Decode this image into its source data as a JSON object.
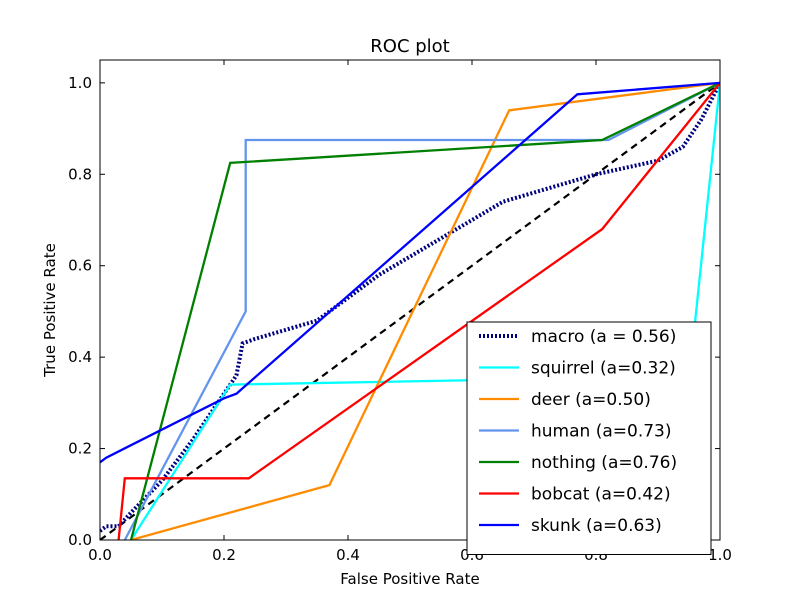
{
  "chart_data": {
    "type": "line",
    "title": "ROC plot",
    "xlabel": "False Positive Rate",
    "ylabel": "True Positive Rate",
    "xlim": [
      0.0,
      1.0
    ],
    "ylim": [
      0.0,
      1.05
    ],
    "xticks": [
      "0.0",
      "0.2",
      "0.4",
      "0.6",
      "0.8",
      "1.0"
    ],
    "yticks": [
      "0.0",
      "0.2",
      "0.4",
      "0.6",
      "0.8",
      "1.0"
    ],
    "grid": false,
    "legend_position": "lower-right",
    "reference_line": {
      "x": [
        0,
        1
      ],
      "y": [
        0,
        1
      ],
      "color": "#000000",
      "style": "dashed"
    },
    "series": [
      {
        "name": "macro (a = 0.56)",
        "color": "#000080",
        "style": "dotted",
        "x": [
          0.0,
          0.01,
          0.03,
          0.05,
          0.1,
          0.15,
          0.2,
          0.22,
          0.23,
          0.25,
          0.35,
          0.45,
          0.55,
          0.65,
          0.75,
          0.8,
          0.9,
          0.94,
          0.97,
          1.0
        ],
        "y": [
          0.02,
          0.03,
          0.03,
          0.06,
          0.13,
          0.22,
          0.32,
          0.36,
          0.43,
          0.44,
          0.48,
          0.58,
          0.66,
          0.74,
          0.78,
          0.8,
          0.83,
          0.86,
          0.92,
          1.0
        ]
      },
      {
        "name": "squirrel (a=0.32)",
        "color": "#00ffff",
        "style": "solid",
        "x": [
          0.05,
          0.21,
          0.62,
          0.95,
          1.0
        ],
        "y": [
          0.0,
          0.34,
          0.35,
          0.35,
          1.0
        ]
      },
      {
        "name": "deer (a=0.50)",
        "color": "#ff8c00",
        "style": "solid",
        "x": [
          0.05,
          0.37,
          0.66,
          1.0
        ],
        "y": [
          0.0,
          0.12,
          0.94,
          1.0
        ]
      },
      {
        "name": "human (a=0.73)",
        "color": "#6495ed",
        "style": "solid",
        "x": [
          0.04,
          0.235,
          0.235,
          0.82,
          1.0
        ],
        "y": [
          0.0,
          0.5,
          0.875,
          0.875,
          1.0
        ]
      },
      {
        "name": "nothing (a=0.76)",
        "color": "#008000",
        "style": "solid",
        "x": [
          0.05,
          0.21,
          0.81,
          1.0
        ],
        "y": [
          0.0,
          0.825,
          0.875,
          1.0
        ]
      },
      {
        "name": "bobcat (a=0.42)",
        "color": "#ff0000",
        "style": "solid",
        "x": [
          0.03,
          0.04,
          0.24,
          0.81,
          1.0
        ],
        "y": [
          0.0,
          0.135,
          0.135,
          0.68,
          1.0
        ]
      },
      {
        "name": "skunk (a=0.63)",
        "color": "#0000ff",
        "style": "solid",
        "x": [
          0.0,
          0.01,
          0.2,
          0.22,
          0.77,
          1.0
        ],
        "y": [
          0.17,
          0.18,
          0.31,
          0.32,
          0.975,
          1.0
        ]
      }
    ]
  }
}
